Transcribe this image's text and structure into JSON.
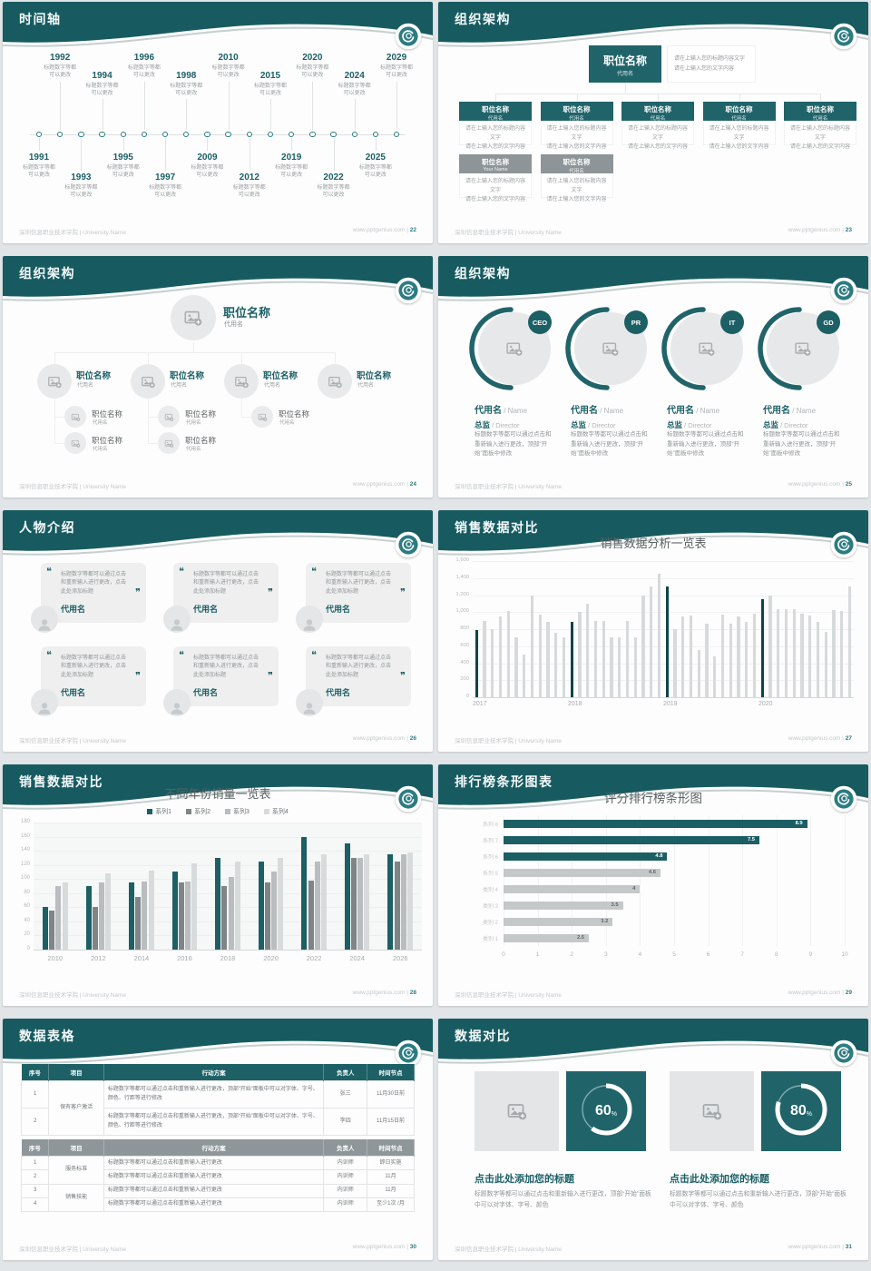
{
  "footer": {
    "left": "深圳信息职业技术学院 | University Name",
    "site": "www.pptgenius.com"
  },
  "colors": {
    "accent": "#1b5f66",
    "header": "#175b61",
    "bar_dark": "#0e4449",
    "bar_light": "#d7dadb",
    "gray_box": "#8d9598"
  },
  "icons": {
    "quote_open": "❝",
    "quote_close": "❞"
  },
  "slides": [
    {
      "page": "22",
      "title": "时间轴",
      "type": "timeline",
      "timeline": {
        "caption1": "标题数字等都",
        "caption2": "可以更改",
        "above": [
          "1992",
          "1994",
          "1996",
          "1998",
          "2010",
          "2015",
          "2020",
          "2024",
          "2029"
        ],
        "below": [
          "1991",
          "1993",
          "1995",
          "1997",
          "2009",
          "2012",
          "2019",
          "2022",
          "2025"
        ]
      }
    },
    {
      "page": "23",
      "title": "组织架构",
      "type": "org-boxes",
      "org": {
        "root": {
          "title": "职位名称",
          "sub": "代用名"
        },
        "note": [
          "请在上输入您的标题内容文字",
          "请在上输入您的文字内容"
        ],
        "desc": [
          "请在上输入您的标题内容文字",
          "请在上输入您的文字内容"
        ],
        "row1": [
          {
            "title": "职位名称",
            "sub": "代用名"
          },
          {
            "title": "职位名称",
            "sub": "代用名"
          },
          {
            "title": "职位名称",
            "sub": "代用名"
          },
          {
            "title": "职位名称",
            "sub": "代用名"
          },
          {
            "title": "职位名称",
            "sub": "代用名"
          }
        ],
        "row2": [
          {
            "title": "职位名称",
            "sub": "Your Name"
          },
          {
            "title": "职位名称",
            "sub": "代用名"
          }
        ]
      }
    },
    {
      "page": "24",
      "title": "组织架构",
      "type": "org-photo",
      "org": {
        "root": {
          "title": "职位名称",
          "sub": "代用名"
        },
        "cols": [
          {
            "title": "职位名称",
            "sub": "代用名",
            "children": [
              {
                "title": "职位名称",
                "sub": "代用名"
              },
              {
                "title": "职位名称",
                "sub": "代用名"
              }
            ]
          },
          {
            "title": "职位名称",
            "sub": "代用名",
            "children": [
              {
                "title": "职位名称",
                "sub": "代用名"
              },
              {
                "title": "职位名称",
                "sub": "代用名"
              }
            ]
          },
          {
            "title": "职位名称",
            "sub": "代用名",
            "children": [
              {
                "title": "职位名称",
                "sub": "代用名"
              }
            ]
          },
          {
            "title": "职位名称",
            "sub": "代用名",
            "children": []
          }
        ]
      }
    },
    {
      "page": "25",
      "title": "组织架构",
      "type": "org-circles",
      "members": [
        {
          "badge": "CEO",
          "name": "代用名",
          "name_en": "Name",
          "role": "总监",
          "role_en": "Director",
          "desc": "标题数字等都可以通过点击和重新输入进行更改，顶部“开始”面板中修改"
        },
        {
          "badge": "PR",
          "name": "代用名",
          "name_en": "Name",
          "role": "总监",
          "role_en": "Director",
          "desc": "标题数字等都可以通过点击和重新输入进行更改，顶部“开始”面板中修改"
        },
        {
          "badge": "IT",
          "name": "代用名",
          "name_en": "Name",
          "role": "总监",
          "role_en": "Director",
          "desc": "标题数字等都可以通过点击和重新输入进行更改，顶部“开始”面板中修改"
        },
        {
          "badge": "GD",
          "name": "代用名",
          "name_en": "Name",
          "role": "总监",
          "role_en": "Director",
          "desc": "标题数字等都可以通过点击和重新输入进行更改，顶部“开始”面板中修改"
        }
      ]
    },
    {
      "page": "26",
      "title": "人物介绍",
      "type": "people",
      "cards": [
        {
          "quote": "标题数字等都可以通过点击和重新输入进行更改，点击此处添加标题",
          "name": "代用名"
        },
        {
          "quote": "标题数字等都可以通过点击和重新输入进行更改，点击此处添加标题",
          "name": "代用名"
        },
        {
          "quote": "标题数字等都可以通过点击和重新输入进行更改，点击此处添加标题",
          "name": "代用名"
        },
        {
          "quote": "标题数字等都可以通过点击和重新输入进行更改，点击此处添加标题",
          "name": "代用名"
        },
        {
          "quote": "标题数字等都可以通过点击和重新输入进行更改，点击此处添加标题",
          "name": "代用名"
        },
        {
          "quote": "标题数字等都可以通过点击和重新输入进行更改，点击此处添加标题",
          "name": "代用名"
        }
      ]
    },
    {
      "page": "27",
      "title": "销售数据对比",
      "type": "column-chart",
      "chart_data": {
        "type": "bar",
        "title": "销售数据分析一览表",
        "ymax": 1600,
        "yticks": [
          "1,600",
          "1,400",
          "1,200",
          "1,000",
          "800",
          "600",
          "400",
          "200",
          "0"
        ],
        "xlabels": [
          "2017",
          "2018",
          "2019",
          "2020"
        ],
        "color_light": "#d7dadb",
        "color_dark": "#0e4449",
        "dark_indices": [
          0,
          12,
          24,
          36
        ],
        "values": [
          790,
          900,
          800,
          945,
          1015,
          700,
          500,
          1200,
          975,
          885,
          760,
          700,
          890,
          1000,
          1100,
          900,
          900,
          700,
          700,
          900,
          700,
          1200,
          1300,
          1450,
          1300,
          800,
          950,
          960,
          560,
          860,
          480,
          970,
          860,
          950,
          890,
          980,
          1150,
          1200,
          1030,
          1040,
          1030,
          980,
          960,
          890,
          770,
          1020,
          1010,
          1300
        ]
      }
    },
    {
      "page": "28",
      "title": "销售数据对比",
      "type": "grouped-chart",
      "chart_data": {
        "type": "bar",
        "title": "不同年份销量一览表",
        "ymax": 180,
        "yticks": [
          "180",
          "160",
          "140",
          "120",
          "100",
          "80",
          "60",
          "40",
          "20",
          "0"
        ],
        "categories": [
          "2010",
          "2012",
          "2014",
          "2016",
          "2018",
          "2020",
          "2022",
          "2024",
          "2026"
        ],
        "series": [
          {
            "name": "系列1",
            "color": "#1c5f64",
            "values": [
              60,
              90,
              95,
              110,
              130,
              125,
              160,
              150,
              135
            ]
          },
          {
            "name": "系列2",
            "color": "#7f8587",
            "values": [
              55,
              60,
              75,
              95,
              90,
              95,
              98,
              130,
              125
            ]
          },
          {
            "name": "系列3",
            "color": "#b9bdbf",
            "values": [
              90,
              95,
              97,
              97,
              103,
              110,
              125,
              130,
              135
            ]
          },
          {
            "name": "系列4",
            "color": "#d8dbdc",
            "values": [
              95,
              108,
              112,
              122,
              125,
              130,
              135,
              135,
              138
            ]
          }
        ]
      }
    },
    {
      "page": "29",
      "title": "排行榜条形图表",
      "type": "hbar-chart",
      "chart_data": {
        "type": "bar",
        "title": "评分排行榜条形图",
        "xmax": 10,
        "xticks": [
          "0",
          "1",
          "2",
          "3",
          "4",
          "5",
          "6",
          "7",
          "8",
          "9",
          "10"
        ],
        "categories": [
          "系列 8",
          "系列 7",
          "系列 6",
          "系列 5",
          "类别 4",
          "类别 3",
          "类别 2",
          "类别 1"
        ],
        "values": [
          8.9,
          7.5,
          4.8,
          4.6,
          4,
          3.5,
          3.2,
          2.5
        ],
        "labels": [
          "8.9",
          "7.5",
          "4.8",
          "4.6",
          "4",
          "3.5",
          "3.2",
          "2.5"
        ],
        "teal_count": 3,
        "color_teal": "#1b5f64",
        "color_gray": "#c5c8c9"
      }
    },
    {
      "page": "30",
      "title": "数据表格",
      "type": "tables",
      "tables": [
        {
          "style": "teal",
          "columns": [
            "序号",
            "项目",
            "行动方案",
            "负责人",
            "时间节点"
          ],
          "rows": [
            {
              "no": "1",
              "item": "保有客户激活",
              "item_span": 2,
              "plan": "标题数字等都可以通过点击和重新输入进行更改，顶部“开始”面板中可以对字体、字号、颜色、行距等进行修改",
              "owner": "张三",
              "time": "11月30日前"
            },
            {
              "no": "2",
              "plan": "标题数字等都可以通过点击和重新输入进行更改，顶部“开始”面板中可以对字体、字号、颜色、行距等进行修改",
              "owner": "李四",
              "time": "11月15日前"
            }
          ]
        },
        {
          "style": "gray",
          "columns": [
            "序号",
            "项目",
            "行动方案",
            "负责人",
            "时间节点"
          ],
          "rows": [
            {
              "no": "1",
              "item": "服务标准",
              "item_span": 2,
              "plan": "标题数字等都可以通过点击和重新输入进行更改",
              "owner": "内训师",
              "time": "即日实施"
            },
            {
              "no": "2",
              "plan": "标题数字等都可以通过点击和重新输入进行更改",
              "owner": "内训师",
              "time": "11月"
            },
            {
              "no": "3",
              "item": "销售技能",
              "item_span": 2,
              "plan": "标题数字等都可以通过点击和重新输入进行更改",
              "owner": "内训师",
              "time": "11月"
            },
            {
              "no": "4",
              "plan": "标题数字等都可以通过点击和重新输入进行更改",
              "owner": "内训师",
              "time": "至少1次 /月"
            }
          ]
        }
      ]
    },
    {
      "page": "31",
      "title": "数据对比",
      "type": "donuts",
      "panels": [
        {
          "percent": 60,
          "percent_label": "60",
          "heading": "点击此处添加您的标题",
          "desc": "标题数字等都可以通过点击和重新输入进行更改，顶部“开始”面板中可以对字体、字号、颜色"
        },
        {
          "percent": 80,
          "percent_label": "80",
          "heading": "点击此处添加您的标题",
          "desc": "标题数字等都可以通过点击和重新输入进行更改，顶部“开始”面板中可以对字体、字号、颜色"
        }
      ]
    }
  ]
}
